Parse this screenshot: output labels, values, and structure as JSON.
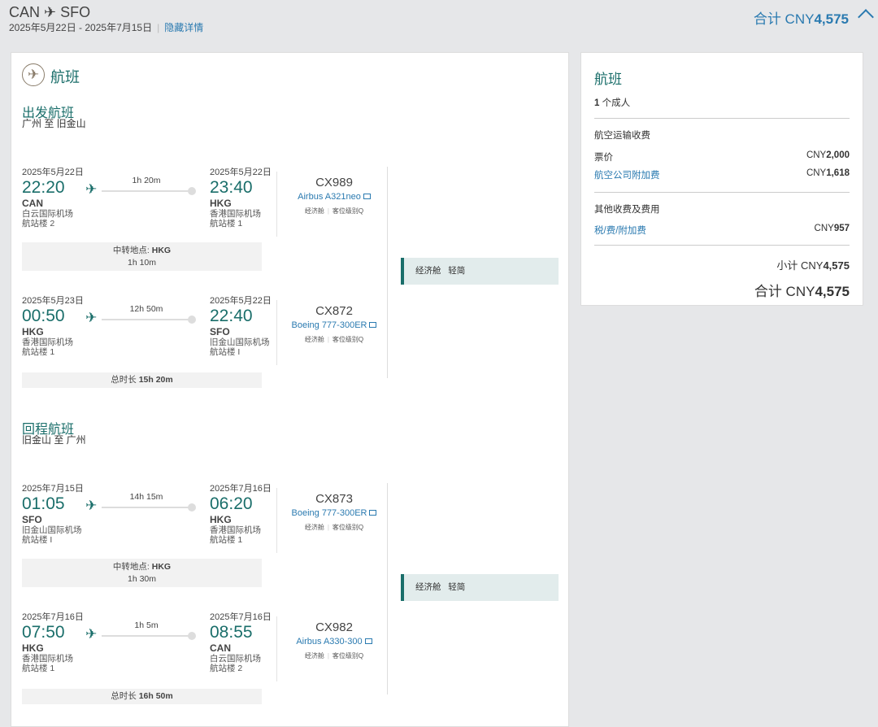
{
  "header": {
    "origin": "CAN",
    "arrow": "✈",
    "destination": "SFO",
    "dates": "2025年5月22日 - 2025年7月15日",
    "hide_details": "隐藏详情",
    "total_prefix": "合计 CNY",
    "total_amount": "4,575"
  },
  "flights_panel": {
    "title": "航班",
    "icon": "airplane-icon"
  },
  "journeys": [
    {
      "title": "出发航班",
      "route": "广州 至 旧金山",
      "segments": [
        {
          "dep": {
            "date": "2025年5月22日",
            "time": "22:20",
            "code": "CAN",
            "airport": "白云国际机场",
            "terminal": "航站楼 2"
          },
          "duration": "1h 20m",
          "arr": {
            "date": "2025年5月22日",
            "time": "23:40",
            "code": "HKG",
            "airport": "香港国际机场",
            "terminal": "航站楼 1"
          },
          "flight": "CX989",
          "aircraft": "Airbus A321neo",
          "cabin": "经济舱",
          "booking_class": "客位级别Q"
        },
        {
          "dep": {
            "date": "2025年5月23日",
            "time": "00:50",
            "code": "HKG",
            "airport": "香港国际机场",
            "terminal": "航站楼 1"
          },
          "duration": "12h 50m",
          "arr": {
            "date": "2025年5月22日",
            "time": "22:40",
            "code": "SFO",
            "airport": "旧金山国际机场",
            "terminal": "航站楼 I"
          },
          "flight": "CX872",
          "aircraft": "Boeing 777-300ER",
          "cabin": "经济舱",
          "booking_class": "客位级别Q"
        }
      ],
      "layover": {
        "label": "中转地点: ",
        "code": "HKG",
        "duration": "1h 10m"
      },
      "total": {
        "label": "总时长 ",
        "duration": "15h 20m"
      },
      "fare": {
        "cabin": "经济舱",
        "brand": "轻简"
      }
    },
    {
      "title": "回程航班",
      "route": "旧金山 至 广州",
      "segments": [
        {
          "dep": {
            "date": "2025年7月15日",
            "time": "01:05",
            "code": "SFO",
            "airport": "旧金山国际机场",
            "terminal": "航站楼 I"
          },
          "duration": "14h 15m",
          "arr": {
            "date": "2025年7月16日",
            "time": "06:20",
            "code": "HKG",
            "airport": "香港国际机场",
            "terminal": "航站楼 1"
          },
          "flight": "CX873",
          "aircraft": "Boeing 777-300ER",
          "cabin": "经济舱",
          "booking_class": "客位级别Q"
        },
        {
          "dep": {
            "date": "2025年7月16日",
            "time": "07:50",
            "code": "HKG",
            "airport": "香港国际机场",
            "terminal": "航站楼 1"
          },
          "duration": "1h 5m",
          "arr": {
            "date": "2025年7月16日",
            "time": "08:55",
            "code": "CAN",
            "airport": "白云国际机场",
            "terminal": "航站楼 2"
          },
          "flight": "CX982",
          "aircraft": "Airbus A330-300",
          "cabin": "经济舱",
          "booking_class": "客位级别Q"
        }
      ],
      "layover": {
        "label": "中转地点: ",
        "code": "HKG",
        "duration": "1h 30m"
      },
      "total": {
        "label": "总时长 ",
        "duration": "16h 50m"
      },
      "fare": {
        "cabin": "经济舱",
        "brand": "轻简"
      }
    }
  ],
  "summary": {
    "title": "航班",
    "pax_count": "1",
    "pax_label": " 个成人",
    "air_section": "航空运输收费",
    "fare_label": "票价",
    "fare_cur": "CNY",
    "fare_amount": "2,000",
    "surcharge_label": "航空公司附加费",
    "surcharge_cur": "CNY",
    "surcharge_amount": "1,618",
    "other_section": "其他收费及费用",
    "tax_label": "税/费/附加费",
    "tax_cur": "CNY",
    "tax_amount": "957",
    "subtotal_prefix": "小计 CNY",
    "subtotal_amount": "4,575",
    "total_prefix": "合计 CNY",
    "total_amount": "4,575"
  },
  "colors": {
    "teal": "#1a6e6a",
    "link": "#2a7ab0",
    "background": "#e6e7e9"
  }
}
